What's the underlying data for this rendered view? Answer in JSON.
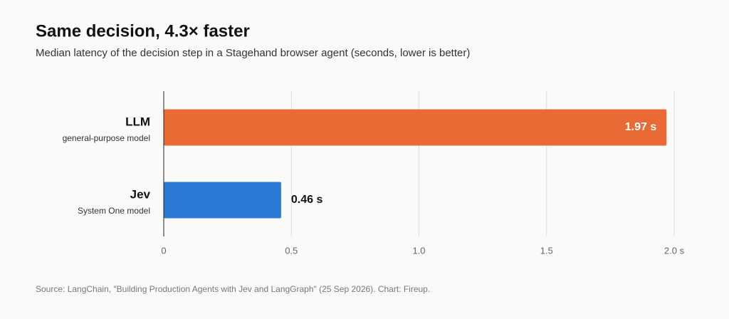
{
  "chart_data": {
    "type": "hbar",
    "title": "Same decision, 4.3× faster",
    "subtitle": "Median latency of the decision step in a Stagehand browser agent (seconds, lower is better)",
    "categories": [
      "LLM",
      "Jev"
    ],
    "category_notes": [
      "general-purpose model",
      "System One model"
    ],
    "series": [
      {
        "name": "Median latency",
        "colors": [
          "#ea6a36",
          "#2a7ad6"
        ],
        "values": [
          1.97,
          0.46
        ],
        "value_labels": [
          "1.97 s",
          "0.46 s"
        ]
      }
    ],
    "xlim": [
      0,
      2
    ],
    "xticks": [
      0,
      0.5,
      {
        "value": 1,
        "label": "1.0"
      },
      1.5,
      {
        "value": 2,
        "label": "2.0 s"
      }
    ],
    "grid": true,
    "source": "Source: LangChain, \"Building Production Agents with Jev and LangGraph\" (25 Sep 2026). Chart: Fireup."
  }
}
